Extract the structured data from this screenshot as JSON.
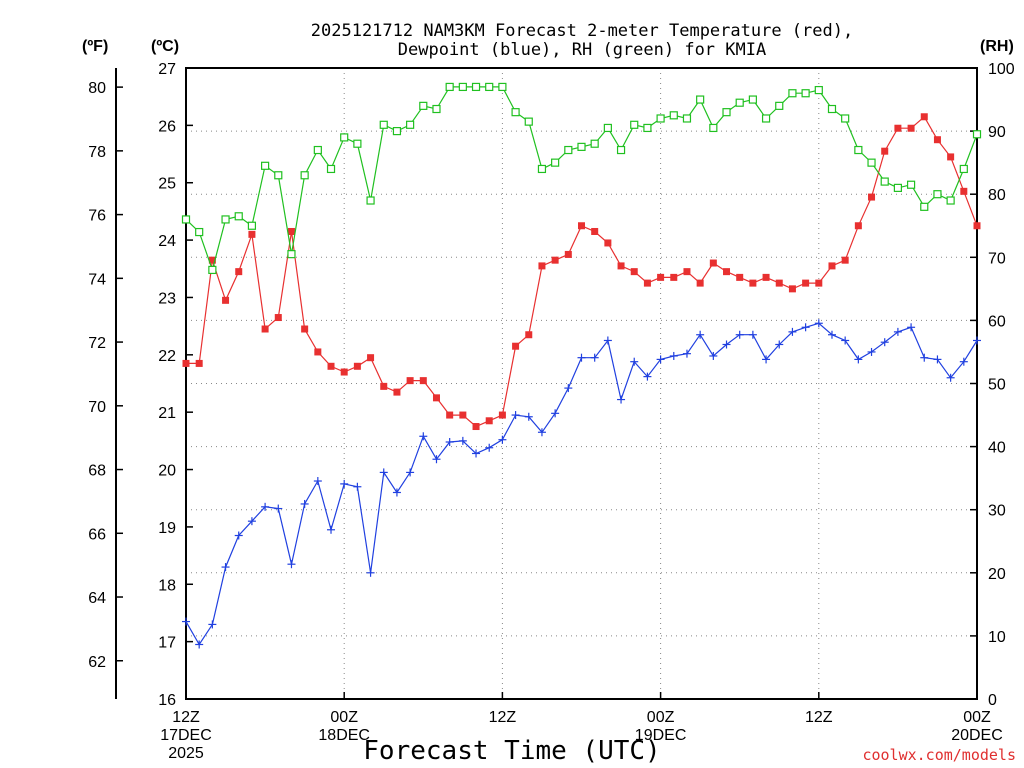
{
  "title_line1": "2025121712 NAM3KM Forecast 2-meter Temperature (red),",
  "title_line2": "Dewpoint (blue), RH (green) for KMIA",
  "units": {
    "f": "(ºF)",
    "c": "(ºC)",
    "rh": "(RH)"
  },
  "xlabel": "Forecast Time (UTC)",
  "credit": "coolwx.com/models",
  "colors": {
    "temperature": "#e83030",
    "dewpoint": "#2040e0",
    "rh": "#20c020"
  },
  "chart_data": {
    "type": "line",
    "title": "2025121712 NAM3KM Forecast 2-meter Temperature (red), Dewpoint (blue), RH (green) for KMIA",
    "xlabel": "Forecast Time (UTC)",
    "x_hours": [
      0,
      1,
      2,
      3,
      4,
      5,
      6,
      7,
      8,
      9,
      10,
      11,
      12,
      13,
      14,
      15,
      16,
      17,
      18,
      19,
      20,
      21,
      22,
      23,
      24,
      25,
      26,
      27,
      28,
      29,
      30,
      31,
      32,
      33,
      34,
      35,
      36,
      37,
      38,
      39,
      40,
      41,
      42,
      43,
      44,
      45,
      46,
      47,
      48,
      49,
      50,
      51,
      52,
      53,
      54,
      55,
      56,
      57,
      58,
      59,
      60
    ],
    "xlim": [
      0,
      60
    ],
    "x_ticks": [
      {
        "hour": 0,
        "lines": [
          "12Z",
          "17DEC",
          "2025"
        ]
      },
      {
        "hour": 12,
        "lines": [
          "00Z",
          "18DEC"
        ]
      },
      {
        "hour": 24,
        "lines": [
          "12Z"
        ]
      },
      {
        "hour": 36,
        "lines": [
          "00Z",
          "19DEC"
        ]
      },
      {
        "hour": 48,
        "lines": [
          "12Z"
        ]
      },
      {
        "hour": 60,
        "lines": [
          "00Z",
          "20DEC"
        ]
      }
    ],
    "y_celsius": {
      "lim": [
        16,
        27
      ],
      "ticks": [
        "16",
        "17",
        "18",
        "19",
        "20",
        "21",
        "22",
        "23",
        "24",
        "25",
        "26",
        "27"
      ]
    },
    "y_fahrenheit": {
      "ticks": [
        "62",
        "64",
        "66",
        "68",
        "70",
        "72",
        "74",
        "76",
        "78",
        "80"
      ]
    },
    "y_rh": {
      "lim": [
        0,
        100
      ],
      "ticks": [
        "0",
        "10",
        "20",
        "30",
        "40",
        "50",
        "60",
        "70",
        "80",
        "90",
        "100"
      ]
    },
    "grid": true,
    "series": [
      {
        "name": "Temperature",
        "axis": "celsius",
        "marker": "filled-square",
        "values": [
          21.85,
          21.85,
          23.65,
          22.95,
          23.45,
          24.1,
          22.45,
          22.65,
          24.15,
          22.45,
          22.05,
          21.8,
          21.7,
          21.8,
          21.95,
          21.45,
          21.35,
          21.55,
          21.55,
          21.25,
          20.95,
          20.95,
          20.75,
          20.85,
          20.95,
          22.15,
          22.35,
          23.55,
          23.65,
          23.75,
          24.25,
          24.15,
          23.95,
          23.55,
          23.45,
          23.25,
          23.35,
          23.35,
          23.45,
          23.25,
          23.6,
          23.45,
          23.35,
          23.25,
          23.35,
          23.25,
          23.15,
          23.25,
          23.25,
          23.55,
          23.65,
          24.25,
          24.75,
          25.55,
          25.95,
          25.95,
          26.15,
          25.75,
          25.45,
          24.85,
          24.25
        ]
      },
      {
        "name": "Dewpoint",
        "axis": "celsius",
        "marker": "plus",
        "values": [
          17.35,
          16.95,
          17.3,
          18.3,
          18.85,
          19.1,
          19.35,
          19.32,
          18.35,
          19.4,
          19.8,
          18.95,
          19.75,
          19.7,
          18.2,
          19.95,
          19.6,
          19.95,
          20.58,
          20.18,
          20.48,
          20.5,
          20.28,
          20.38,
          20.52,
          20.95,
          20.92,
          20.65,
          20.98,
          21.42,
          21.95,
          21.95,
          22.25,
          21.22,
          21.88,
          21.62,
          21.92,
          21.98,
          22.02,
          22.35,
          21.98,
          22.18,
          22.35,
          22.35,
          21.92,
          22.18,
          22.4,
          22.48,
          22.55,
          22.35,
          22.25,
          21.92,
          22.05,
          22.22,
          22.4,
          22.48,
          21.95,
          21.92,
          21.6,
          21.88,
          22.25
        ]
      },
      {
        "name": "RH",
        "axis": "rh",
        "marker": "open-square",
        "values": [
          76,
          74,
          68,
          76,
          76.5,
          75,
          84.5,
          83,
          70.5,
          83,
          87,
          84,
          89,
          88,
          79,
          91,
          90,
          91,
          94,
          93.5,
          97,
          97,
          97,
          97,
          97,
          93,
          91.5,
          84,
          85,
          87,
          87.5,
          88,
          90.5,
          87,
          91,
          90.5,
          92,
          92.5,
          92,
          95,
          90.5,
          93,
          94.5,
          95,
          92,
          94,
          96,
          96,
          96.5,
          93.5,
          92,
          87,
          85,
          82,
          81,
          81.5,
          78,
          80,
          79,
          84,
          89.5
        ]
      }
    ]
  }
}
